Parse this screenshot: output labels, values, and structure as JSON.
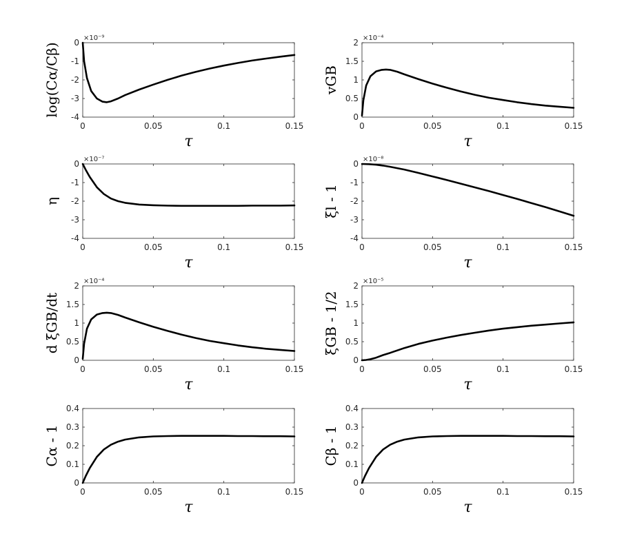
{
  "chart_data": [
    {
      "type": "line",
      "ylabel": "log(Cα/Cβ)",
      "xlabel": "τ",
      "exponent": "×10⁻⁹",
      "xlim": [
        0,
        0.15
      ],
      "ylim": [
        -4,
        0
      ],
      "xticks": [
        0,
        0.05,
        0.1,
        0.15
      ],
      "xtick_labels": [
        "0",
        "0.05",
        "0.1",
        "0.15"
      ],
      "yticks": [
        0,
        -1,
        -2,
        -3,
        -4
      ],
      "ytick_labels": [
        "0",
        "-1",
        "-2",
        "-3",
        "-4"
      ],
      "x": [
        0,
        0.001,
        0.003,
        0.006,
        0.01,
        0.014,
        0.017,
        0.02,
        0.025,
        0.03,
        0.04,
        0.05,
        0.06,
        0.07,
        0.08,
        0.09,
        0.1,
        0.11,
        0.12,
        0.13,
        0.14,
        0.15
      ],
      "y": [
        0,
        -1.0,
        -1.9,
        -2.6,
        -3.0,
        -3.17,
        -3.2,
        -3.15,
        -3.0,
        -2.82,
        -2.52,
        -2.25,
        -2.0,
        -1.77,
        -1.57,
        -1.39,
        -1.23,
        -1.09,
        -0.96,
        -0.85,
        -0.75,
        -0.66
      ]
    },
    {
      "type": "line",
      "ylabel": "vGB",
      "xlabel": "τ",
      "exponent": "×10⁻⁴",
      "xlim": [
        0,
        0.15
      ],
      "ylim": [
        0,
        2
      ],
      "xticks": [
        0,
        0.05,
        0.1,
        0.15
      ],
      "xtick_labels": [
        "0",
        "0.05",
        "0.1",
        "0.15"
      ],
      "yticks": [
        0,
        0.5,
        1,
        1.5,
        2
      ],
      "ytick_labels": [
        "0",
        "0.5",
        "1",
        "1.5",
        "2"
      ],
      "x": [
        0,
        0.001,
        0.003,
        0.006,
        0.01,
        0.014,
        0.017,
        0.02,
        0.025,
        0.03,
        0.04,
        0.05,
        0.06,
        0.07,
        0.08,
        0.09,
        0.1,
        0.11,
        0.12,
        0.13,
        0.14,
        0.15
      ],
      "y": [
        0.04,
        0.45,
        0.85,
        1.1,
        1.23,
        1.27,
        1.28,
        1.27,
        1.22,
        1.15,
        1.02,
        0.9,
        0.79,
        0.69,
        0.6,
        0.52,
        0.46,
        0.4,
        0.35,
        0.31,
        0.28,
        0.25
      ]
    },
    {
      "type": "line",
      "ylabel": "η",
      "xlabel": "τ",
      "exponent": "×10⁻⁷",
      "xlim": [
        0,
        0.15
      ],
      "ylim": [
        -4,
        0
      ],
      "xticks": [
        0,
        0.05,
        0.1,
        0.15
      ],
      "xtick_labels": [
        "0",
        "0.05",
        "0.1",
        "0.15"
      ],
      "yticks": [
        0,
        -1,
        -2,
        -3,
        -4
      ],
      "ytick_labels": [
        "0",
        "-1",
        "-2",
        "-3",
        "-4"
      ],
      "x": [
        0,
        0.002,
        0.005,
        0.01,
        0.015,
        0.02,
        0.025,
        0.03,
        0.04,
        0.05,
        0.06,
        0.07,
        0.08,
        0.09,
        0.1,
        0.11,
        0.12,
        0.13,
        0.14,
        0.15
      ],
      "y": [
        0,
        -0.3,
        -0.7,
        -1.25,
        -1.62,
        -1.86,
        -2.0,
        -2.09,
        -2.18,
        -2.22,
        -2.24,
        -2.25,
        -2.25,
        -2.25,
        -2.25,
        -2.25,
        -2.24,
        -2.24,
        -2.24,
        -2.23
      ]
    },
    {
      "type": "line",
      "ylabel": "ξl - 1",
      "xlabel": "τ",
      "exponent": "×10⁻⁸",
      "xlim": [
        0,
        0.15
      ],
      "ylim": [
        -4,
        0
      ],
      "xticks": [
        0,
        0.05,
        0.1,
        0.15
      ],
      "xtick_labels": [
        "0",
        "0.05",
        "0.1",
        "0.15"
      ],
      "yticks": [
        0,
        -1,
        -2,
        -3,
        -4
      ],
      "ytick_labels": [
        "0",
        "-1",
        "-2",
        "-3",
        "-4"
      ],
      "x": [
        0,
        0.005,
        0.01,
        0.015,
        0.02,
        0.03,
        0.04,
        0.05,
        0.06,
        0.07,
        0.08,
        0.09,
        0.1,
        0.11,
        0.12,
        0.13,
        0.14,
        0.15
      ],
      "y": [
        0,
        -0.01,
        -0.04,
        -0.09,
        -0.15,
        -0.3,
        -0.48,
        -0.67,
        -0.86,
        -1.06,
        -1.26,
        -1.46,
        -1.67,
        -1.88,
        -2.1,
        -2.32,
        -2.55,
        -2.79
      ]
    },
    {
      "type": "line",
      "ylabel": "d ξGB/dt",
      "xlabel": "τ",
      "exponent": "×10⁻⁴",
      "xlim": [
        0,
        0.15
      ],
      "ylim": [
        0,
        2
      ],
      "xticks": [
        0,
        0.05,
        0.1,
        0.15
      ],
      "xtick_labels": [
        "0",
        "0.05",
        "0.1",
        "0.15"
      ],
      "yticks": [
        0,
        0.5,
        1,
        1.5,
        2
      ],
      "ytick_labels": [
        "0",
        "0.5",
        "1",
        "1.5",
        "2"
      ],
      "x": [
        0,
        0.001,
        0.003,
        0.006,
        0.01,
        0.014,
        0.017,
        0.02,
        0.025,
        0.03,
        0.04,
        0.05,
        0.06,
        0.07,
        0.08,
        0.09,
        0.1,
        0.11,
        0.12,
        0.13,
        0.14,
        0.15
      ],
      "y": [
        0.04,
        0.45,
        0.85,
        1.1,
        1.23,
        1.27,
        1.28,
        1.27,
        1.22,
        1.15,
        1.02,
        0.9,
        0.79,
        0.69,
        0.6,
        0.52,
        0.46,
        0.4,
        0.35,
        0.31,
        0.28,
        0.25
      ]
    },
    {
      "type": "line",
      "ylabel": "ξGB - 1/2",
      "xlabel": "τ",
      "exponent": "×10⁻⁵",
      "xlim": [
        0,
        0.15
      ],
      "ylim": [
        0,
        2
      ],
      "xticks": [
        0,
        0.05,
        0.1,
        0.15
      ],
      "xtick_labels": [
        "0",
        "0.05",
        "0.1",
        "0.15"
      ],
      "yticks": [
        0,
        0.5,
        1,
        1.5,
        2
      ],
      "ytick_labels": [
        "0",
        "0.5",
        "1",
        "1.5",
        "2"
      ],
      "x": [
        0,
        0.003,
        0.006,
        0.01,
        0.015,
        0.02,
        0.03,
        0.04,
        0.05,
        0.06,
        0.07,
        0.08,
        0.09,
        0.1,
        0.11,
        0.12,
        0.13,
        0.14,
        0.15
      ],
      "y": [
        0,
        0.01,
        0.03,
        0.07,
        0.14,
        0.2,
        0.33,
        0.44,
        0.53,
        0.61,
        0.68,
        0.74,
        0.8,
        0.85,
        0.89,
        0.93,
        0.96,
        0.99,
        1.02
      ]
    },
    {
      "type": "line",
      "ylabel": "Cα - 1",
      "xlabel": "τ",
      "exponent": "",
      "xlim": [
        0,
        0.15
      ],
      "ylim": [
        0,
        0.4
      ],
      "xticks": [
        0,
        0.05,
        0.1,
        0.15
      ],
      "xtick_labels": [
        "0",
        "0.05",
        "0.1",
        "0.15"
      ],
      "yticks": [
        0,
        0.1,
        0.2,
        0.3,
        0.4
      ],
      "ytick_labels": [
        "0",
        "0.1",
        "0.2",
        "0.3",
        "0.4"
      ],
      "x": [
        0,
        0.002,
        0.005,
        0.01,
        0.015,
        0.02,
        0.025,
        0.03,
        0.04,
        0.05,
        0.06,
        0.07,
        0.08,
        0.09,
        0.1,
        0.11,
        0.12,
        0.13,
        0.14,
        0.15
      ],
      "y": [
        0,
        0.035,
        0.08,
        0.14,
        0.18,
        0.205,
        0.222,
        0.233,
        0.245,
        0.25,
        0.252,
        0.253,
        0.253,
        0.253,
        0.253,
        0.252,
        0.252,
        0.251,
        0.251,
        0.25
      ]
    },
    {
      "type": "line",
      "ylabel": "Cβ - 1",
      "xlabel": "τ",
      "exponent": "",
      "xlim": [
        0,
        0.15
      ],
      "ylim": [
        0,
        0.4
      ],
      "xticks": [
        0,
        0.05,
        0.1,
        0.15
      ],
      "xtick_labels": [
        "0",
        "0.05",
        "0.1",
        "0.15"
      ],
      "yticks": [
        0,
        0.1,
        0.2,
        0.3,
        0.4
      ],
      "ytick_labels": [
        "0",
        "0.1",
        "0.2",
        "0.3",
        "0.4"
      ],
      "x": [
        0,
        0.002,
        0.005,
        0.01,
        0.015,
        0.02,
        0.025,
        0.03,
        0.04,
        0.05,
        0.06,
        0.07,
        0.08,
        0.09,
        0.1,
        0.11,
        0.12,
        0.13,
        0.14,
        0.15
      ],
      "y": [
        0,
        0.035,
        0.08,
        0.14,
        0.18,
        0.205,
        0.222,
        0.233,
        0.245,
        0.25,
        0.252,
        0.253,
        0.253,
        0.253,
        0.253,
        0.252,
        0.252,
        0.251,
        0.251,
        0.25
      ]
    }
  ]
}
